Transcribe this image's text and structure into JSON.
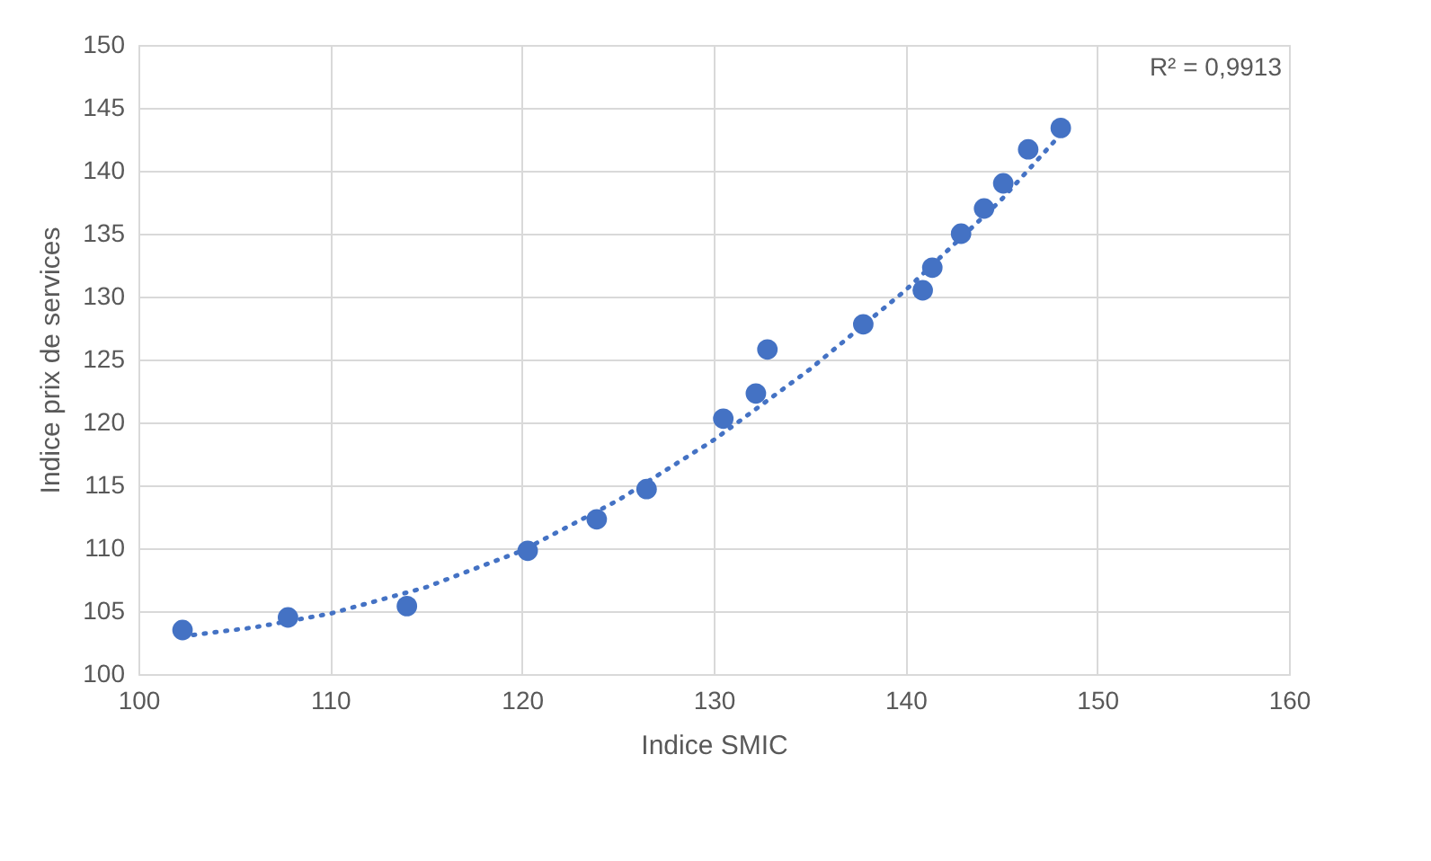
{
  "chart_data": {
    "type": "scatter",
    "xlabel": "Indice SMIC",
    "ylabel": "Indice prix de services",
    "xlim": [
      100,
      160
    ],
    "xticks": [
      100,
      110,
      120,
      130,
      140,
      150,
      160
    ],
    "ylim": [
      100,
      150
    ],
    "yticks": [
      100,
      105,
      110,
      115,
      120,
      125,
      130,
      135,
      140,
      145,
      150
    ],
    "grid": true,
    "annotations": [
      "R² = 0,9913"
    ],
    "series": [
      {
        "color": "#4472c4",
        "marker": "circle",
        "x": [
          102.3,
          107.8,
          114.0,
          120.3,
          123.9,
          126.5,
          130.5,
          132.2,
          132.8,
          137.8,
          140.9,
          141.4,
          142.9,
          144.1,
          145.1,
          146.4,
          148.1
        ],
        "values": [
          103.5,
          104.5,
          105.4,
          109.8,
          112.3,
          114.7,
          120.3,
          122.3,
          125.8,
          127.8,
          130.5,
          132.3,
          135.0,
          137.0,
          139.0,
          141.7,
          143.4
        ]
      },
      {
        "type": "line",
        "color": "#4472c4",
        "line_style": "dotted",
        "x": [
          102.3,
          106,
          110,
          115,
          120,
          125,
          130,
          135,
          140,
          145,
          148.1
        ],
        "values": [
          103.0,
          103.7,
          104.8,
          106.9,
          109.8,
          113.8,
          118.6,
          124.2,
          130.5,
          137.7,
          142.9
        ]
      }
    ]
  }
}
